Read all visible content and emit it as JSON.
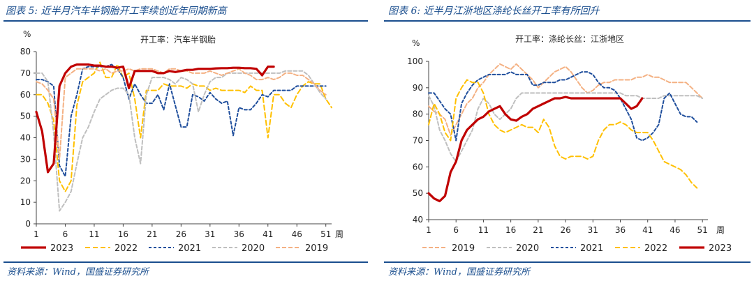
{
  "left": {
    "heading": "图表 5:  近半月汽车半钢胎开工率续创近年同期新高",
    "source": "资料来源：Wind，国盛证券研究所"
  },
  "right": {
    "heading": "图表 6:  近半月江浙地区涤纶长丝开工率有所回升",
    "source": "资料来源：Wind，国盛证券研究所"
  },
  "colors": {
    "2023": "#c00000",
    "2022": "#ffc000",
    "2021": "#1f4e9c",
    "2020": "#bfbfbf",
    "2019": "#f4b183",
    "accent": "#1a4e8e"
  },
  "chart_data": [
    {
      "type": "line",
      "title": "开工率：汽车半钢胎",
      "ylabel": "%",
      "xlabel": "周",
      "ylim": [
        0,
        80
      ],
      "yticks": [
        0,
        10,
        20,
        30,
        40,
        50,
        60,
        70,
        80
      ],
      "xlim": [
        1,
        52
      ],
      "xticks": [
        1,
        6,
        11,
        16,
        21,
        26,
        31,
        36,
        41,
        46,
        51
      ],
      "legend_position": "bottom",
      "series": [
        {
          "name": "2023",
          "x": [
            1,
            2,
            3,
            4,
            5,
            6,
            7,
            8,
            9,
            10,
            11,
            12,
            13,
            14,
            15,
            16,
            17,
            18,
            19,
            20,
            21,
            22,
            23,
            24,
            25,
            26,
            27,
            28,
            29,
            30,
            31,
            32,
            33,
            34,
            35,
            36,
            37,
            38,
            39,
            40,
            41,
            42
          ],
          "y": [
            52,
            43,
            24,
            28,
            64,
            70,
            73,
            74,
            74,
            74,
            73.5,
            73.5,
            73,
            73,
            72.5,
            73,
            63,
            71,
            71,
            71,
            71,
            70,
            70,
            71,
            70.5,
            71,
            71.5,
            71.5,
            72,
            72,
            72,
            72.2,
            72.3,
            72.3,
            72.5,
            72.5,
            72.3,
            72.3,
            72,
            69,
            73,
            73
          ]
        },
        {
          "name": "2022",
          "x": [
            1,
            2,
            3,
            4,
            5,
            6,
            7,
            8,
            9,
            10,
            11,
            12,
            13,
            14,
            15,
            16,
            17,
            18,
            19,
            20,
            21,
            22,
            23,
            24,
            25,
            26,
            27,
            28,
            29,
            30,
            31,
            32,
            33,
            34,
            35,
            36,
            37,
            38,
            39,
            40,
            41,
            42,
            43,
            44,
            45,
            46,
            47,
            48,
            49,
            50,
            51,
            52
          ],
          "y": [
            60,
            60,
            56,
            48,
            20,
            15,
            20,
            55,
            66,
            68,
            70,
            75,
            68,
            68,
            74,
            68,
            70,
            58,
            40,
            62,
            62,
            62,
            65,
            64,
            64,
            64,
            63,
            65,
            64,
            64,
            62,
            63,
            62,
            62,
            62,
            62,
            61,
            64,
            62,
            62,
            40,
            60,
            60,
            56,
            54,
            60,
            64,
            66,
            65,
            65,
            58,
            54
          ]
        },
        {
          "name": "2021",
          "x": [
            1,
            2,
            3,
            4,
            5,
            6,
            7,
            8,
            9,
            10,
            11,
            12,
            13,
            14,
            15,
            16,
            17,
            18,
            19,
            20,
            21,
            22,
            23,
            24,
            25,
            26,
            27,
            28,
            29,
            30,
            31,
            32,
            33,
            34,
            35,
            36,
            37,
            38,
            39,
            40,
            41,
            42,
            43,
            44,
            45,
            46,
            47,
            48,
            49,
            50,
            51
          ],
          "y": [
            67,
            67,
            66,
            64,
            27,
            22,
            50,
            60,
            72,
            73,
            73,
            73,
            73,
            74,
            72,
            68,
            58,
            65,
            60,
            56,
            56,
            60,
            53,
            65,
            55,
            45,
            45,
            60,
            59,
            57,
            61,
            58,
            56,
            57,
            41,
            54,
            53,
            53,
            56,
            60,
            59,
            62,
            62,
            62,
            62,
            64,
            64,
            64,
            64,
            64,
            64
          ]
        },
        {
          "name": "2020",
          "x": [
            1,
            2,
            3,
            4,
            5,
            6,
            7,
            8,
            9,
            10,
            11,
            12,
            13,
            14,
            15,
            16,
            17,
            18,
            19,
            20,
            21,
            22,
            23,
            24,
            25,
            26,
            27,
            28,
            29,
            30,
            31,
            32,
            33,
            34,
            35,
            36,
            37,
            38,
            39,
            40,
            41,
            42,
            43,
            44,
            45,
            46,
            47,
            48,
            49,
            50,
            51
          ],
          "y": [
            70,
            70,
            66,
            42,
            6,
            10,
            15,
            28,
            40,
            45,
            52,
            58,
            60,
            62,
            63,
            63,
            60,
            40,
            28,
            60,
            68,
            68,
            68,
            67,
            65,
            68,
            67,
            65,
            52,
            60,
            66,
            68,
            68,
            70,
            70,
            70,
            70,
            70,
            70,
            70,
            70,
            70,
            70,
            71,
            71,
            71,
            71,
            69,
            65,
            61,
            58
          ]
        },
        {
          "name": "2019",
          "x": [
            1,
            2,
            3,
            4,
            5,
            6,
            7,
            8,
            9,
            10,
            11,
            12,
            13,
            14,
            15,
            16,
            17,
            18,
            19,
            20,
            21,
            22,
            23,
            24,
            25,
            26,
            27,
            28,
            29,
            30,
            31,
            32,
            33,
            34,
            35,
            36,
            37,
            38,
            39,
            40,
            41,
            42,
            43,
            44,
            45,
            46,
            47,
            48,
            49,
            50,
            51
          ],
          "y": [
            66,
            65,
            62,
            58,
            30,
            68,
            70,
            72,
            72,
            72,
            72,
            71,
            72,
            70,
            71,
            71,
            72,
            71,
            72,
            72,
            72,
            71,
            70,
            72,
            72,
            71,
            71,
            70,
            70,
            70,
            71,
            70,
            69,
            70,
            71,
            72,
            70,
            69,
            67,
            67,
            68,
            67,
            68,
            70,
            70,
            69,
            69,
            67,
            65,
            62,
            60
          ]
        }
      ]
    },
    {
      "type": "line",
      "title": "开工率：涤纶长丝：江浙地区",
      "ylabel": "%",
      "xlabel": "周",
      "ylim": [
        40,
        100
      ],
      "yticks": [
        40,
        50,
        60,
        70,
        80,
        90,
        100
      ],
      "xlim": [
        1,
        52
      ],
      "xticks": [
        1,
        6,
        11,
        16,
        21,
        26,
        31,
        36,
        41,
        46,
        51
      ],
      "legend_position": "bottom",
      "series": [
        {
          "name": "2019",
          "x": [
            1,
            2,
            3,
            4,
            5,
            6,
            7,
            8,
            9,
            10,
            11,
            12,
            13,
            14,
            15,
            16,
            17,
            18,
            19,
            20,
            21,
            22,
            23,
            24,
            25,
            26,
            27,
            28,
            29,
            30,
            31,
            32,
            33,
            34,
            35,
            36,
            37,
            38,
            39,
            40,
            41,
            42,
            43,
            44,
            45,
            46,
            47,
            48,
            49,
            50,
            51
          ],
          "y": [
            83,
            81,
            80,
            78,
            72,
            76,
            80,
            84,
            86,
            90,
            92,
            95,
            97,
            99,
            98,
            97,
            99,
            97,
            95,
            93,
            90,
            92,
            94,
            96,
            97,
            98,
            96,
            93,
            90,
            88,
            89,
            91,
            92,
            92,
            93,
            93,
            93,
            93,
            94,
            94,
            95,
            94,
            94,
            93,
            92,
            92,
            92,
            92,
            90,
            88,
            86
          ]
        },
        {
          "name": "2020",
          "x": [
            1,
            2,
            3,
            4,
            5,
            6,
            7,
            8,
            9,
            10,
            11,
            12,
            13,
            14,
            15,
            16,
            17,
            18,
            19,
            20,
            21,
            22,
            23,
            24,
            25,
            26,
            27,
            28,
            29,
            30,
            31,
            32,
            33,
            34,
            35,
            36,
            37,
            38,
            39,
            40,
            41,
            42,
            43,
            44,
            45,
            46,
            47,
            48,
            49,
            50,
            51
          ],
          "y": [
            87,
            83,
            74,
            70,
            65,
            62,
            66,
            70,
            74,
            82,
            86,
            84,
            80,
            78,
            80,
            82,
            86,
            88,
            88,
            88,
            88,
            88,
            88,
            88,
            88,
            88,
            88,
            88,
            88,
            88,
            88,
            88,
            88,
            88,
            88,
            88,
            87,
            87,
            87,
            86,
            86,
            86,
            86,
            87,
            87,
            87,
            87,
            87,
            87,
            87,
            86
          ]
        },
        {
          "name": "2021",
          "x": [
            1,
            2,
            3,
            4,
            5,
            6,
            7,
            8,
            9,
            10,
            11,
            12,
            13,
            14,
            15,
            16,
            17,
            18,
            19,
            20,
            21,
            22,
            23,
            24,
            25,
            26,
            27,
            28,
            29,
            30,
            31,
            32,
            33,
            34,
            35,
            36,
            37,
            38,
            39,
            40,
            41,
            42,
            43,
            44,
            45,
            46,
            47,
            48,
            49,
            50
          ],
          "y": [
            88,
            88,
            85,
            82,
            80,
            70,
            84,
            88,
            91,
            93,
            94,
            95,
            95,
            95,
            95,
            96,
            95,
            95,
            95,
            91,
            91,
            92,
            92,
            92,
            93,
            93,
            94,
            95,
            96,
            96,
            95,
            92,
            90,
            90,
            89,
            86,
            82,
            78,
            71,
            70,
            71,
            73,
            76,
            86,
            88,
            84,
            80,
            79,
            79,
            77
          ]
        },
        {
          "name": "2022",
          "x": [
            1,
            2,
            3,
            4,
            5,
            6,
            7,
            8,
            9,
            10,
            11,
            12,
            13,
            14,
            15,
            16,
            17,
            18,
            19,
            20,
            21,
            22,
            23,
            24,
            25,
            26,
            27,
            28,
            29,
            30,
            31,
            32,
            33,
            34,
            35,
            36,
            37,
            38,
            39,
            40,
            41,
            42,
            43,
            44,
            45,
            46,
            47,
            48,
            49,
            50
          ],
          "y": [
            76,
            84,
            80,
            73,
            70,
            86,
            90,
            93,
            92,
            92,
            88,
            80,
            76,
            74,
            73,
            74,
            75,
            76,
            75,
            75,
            73,
            78,
            75,
            68,
            64,
            63,
            64,
            64,
            64,
            63,
            64,
            70,
            74,
            76,
            76,
            77,
            76,
            74,
            73,
            73,
            73,
            70,
            66,
            62,
            61,
            60,
            59,
            57,
            54,
            52
          ]
        },
        {
          "name": "2023",
          "x": [
            1,
            2,
            3,
            4,
            5,
            6,
            7,
            8,
            9,
            10,
            11,
            12,
            13,
            14,
            15,
            16,
            17,
            18,
            19,
            20,
            21,
            22,
            23,
            24,
            25,
            26,
            27,
            28,
            29,
            30,
            31,
            32,
            33,
            34,
            35,
            36,
            37,
            38,
            39,
            40
          ],
          "y": [
            50,
            48,
            47,
            49,
            58,
            62,
            70,
            74,
            76,
            78,
            79,
            81,
            82,
            83,
            80,
            78,
            77.5,
            79,
            80,
            82,
            83,
            84,
            85,
            86,
            86,
            86.5,
            86,
            86,
            86,
            86,
            86,
            86,
            86,
            86,
            86,
            86,
            84,
            82,
            83,
            86
          ]
        }
      ]
    }
  ]
}
